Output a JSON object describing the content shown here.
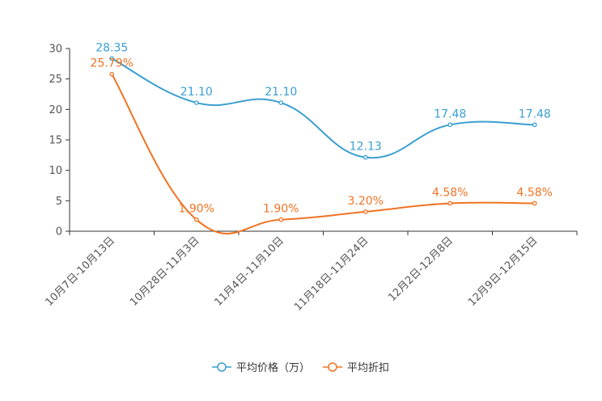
{
  "chart_data": {
    "type": "line",
    "title": "",
    "xlabel": "",
    "ylabel": "",
    "ylim": [
      0,
      30
    ],
    "yticks": [
      "0",
      "5",
      "10",
      "15",
      "20",
      "25",
      "30"
    ],
    "categories": [
      "10月7日-10月13日",
      "10月28日-11月3日",
      "11月4日-11月10日",
      "11月18日-11月24日",
      "12月2日-12月8日",
      "12月9日-12月15日"
    ],
    "series": [
      {
        "name": "平均价格（万）",
        "color": "#3a9fd1",
        "values": [
          28.35,
          21.1,
          21.1,
          12.13,
          17.48,
          17.48
        ],
        "labels": [
          "28.35",
          "21.10",
          "21.10",
          "12.13",
          "17.48",
          "17.48"
        ]
      },
      {
        "name": "平均折扣",
        "color": "#f07322",
        "values": [
          25.79,
          1.9,
          1.9,
          3.2,
          4.58,
          4.58
        ],
        "labels": [
          "25.79%",
          "1.90%",
          "1.90%",
          "3.20%",
          "4.58%",
          "4.58%"
        ]
      }
    ],
    "legend_position": "bottom-center"
  }
}
